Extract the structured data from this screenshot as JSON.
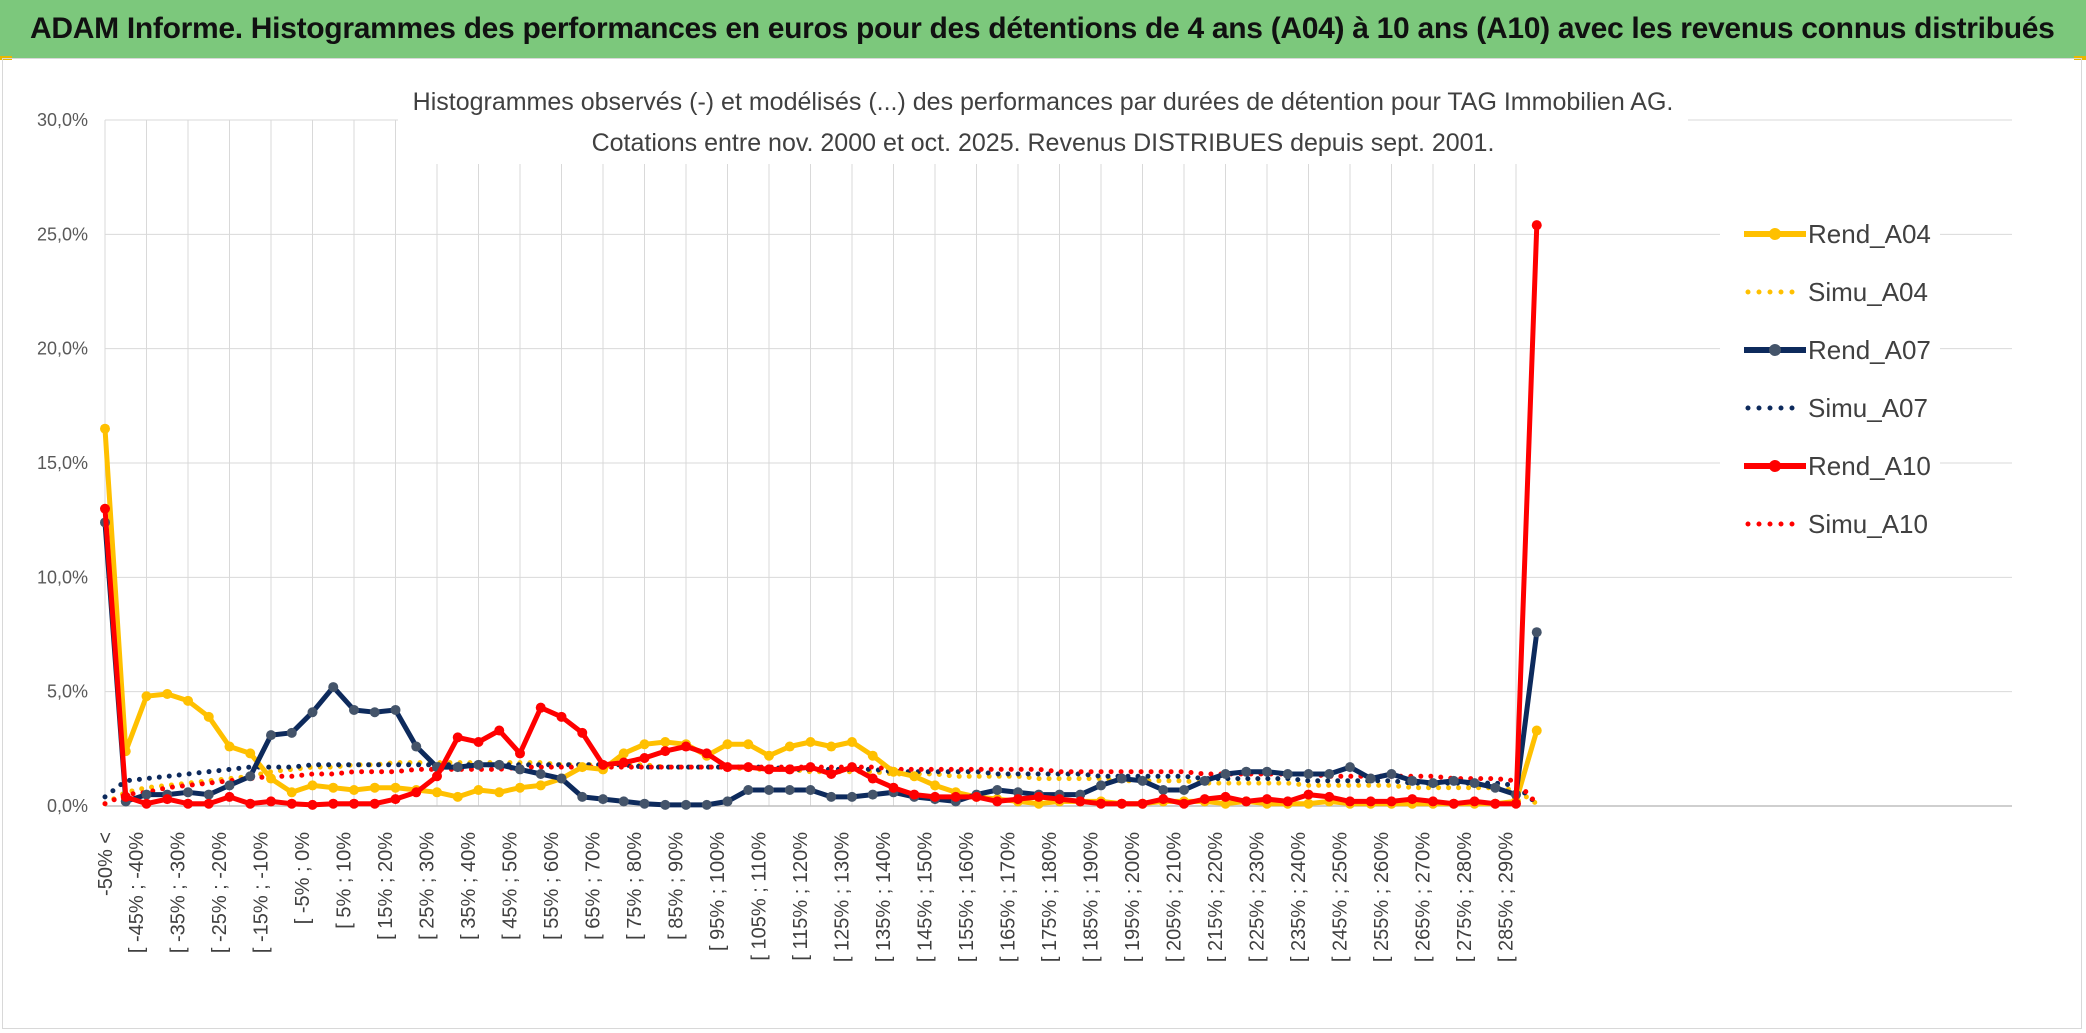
{
  "banner": {
    "title": "ADAM Informe. Histogrammes des performances en euros pour des détentions de 4 ans (A04) à 10 ans (A10) avec les revenus connus distribués"
  },
  "colors": {
    "banner_bg": "#7cc87c",
    "A04": "#ffc000",
    "A07": "#0d2a5c",
    "A10": "#ff0000",
    "grid": "#d9d9d9"
  },
  "chart_data": {
    "type": "line",
    "title_line1": "Histogrammes observés (-) et modélisés (...) des performances par durées de détention pour TAG Immobilien AG.",
    "title_line2": "Cotations entre nov. 2000 et oct. 2025. Revenus DISTRIBUES depuis sept. 2001.",
    "y_ticks": [
      "0,0%",
      "5,0%",
      "10,0%",
      "15,0%",
      "20,0%",
      "25,0%",
      "30,0%"
    ],
    "ylim": [
      0,
      30
    ],
    "grid": true,
    "legend_position": "right",
    "x_labels_shown": [
      "-50% <",
      "[ -45% ; -40%",
      "[ -35% ; -30%",
      "[ -25% ; -20%",
      "[ -15% ; -10%",
      "[ -5% ; 0%",
      "[ 5% ; 10%",
      "[ 15% ; 20%",
      "[ 25% ; 30%",
      "[ 35% ; 40%",
      "[ 45% ; 50%",
      "[ 55% ; 60%",
      "[ 65% ; 70%",
      "[ 75% ; 80%",
      "[ 85% ; 90%",
      "[ 95% ; 100%",
      "[ 105% ; 110%",
      "[ 115% ; 120%",
      "[ 125% ; 130%",
      "[ 135% ; 140%",
      "[ 145% ; 150%",
      "[ 155% ; 160%",
      "[ 165% ; 170%",
      "[ 175% ; 180%",
      "[ 185% ; 190%",
      "[ 195% ; 200%",
      "[ 205% ; 210%",
      "[ 215% ; 220%",
      "[ 225% ; 230%",
      "[ 235% ; 240%",
      "[ 245% ; 250%",
      "[ 255% ; 260%",
      "[ 265% ; 270%",
      "[ 275% ; 280%",
      "[ 285% ; 290%"
    ],
    "n_points": 70,
    "series": [
      {
        "name": "Rend_A04",
        "style": "solid",
        "color": "#ffc000",
        "values": [
          16.5,
          2.4,
          4.8,
          4.9,
          4.6,
          3.9,
          2.6,
          2.3,
          1.2,
          0.6,
          0.9,
          0.8,
          0.7,
          0.8,
          0.8,
          0.7,
          0.6,
          0.4,
          0.7,
          0.6,
          0.8,
          0.9,
          1.2,
          1.7,
          1.6,
          2.3,
          2.7,
          2.8,
          2.7,
          2.2,
          2.7,
          2.7,
          2.2,
          2.6,
          2.8,
          2.6,
          2.8,
          2.2,
          1.5,
          1.3,
          0.9,
          0.6,
          0.4,
          0.3,
          0.2,
          0.1,
          0.2,
          0.2,
          0.2,
          0.1,
          0.1,
          0.2,
          0.2,
          0.2,
          0.1,
          0.2,
          0.1,
          0.1,
          0.1,
          0.2,
          0.1,
          0.1,
          0.1,
          0.1,
          0.1,
          0.1,
          0.1,
          0.1,
          0.2,
          3.3
        ]
      },
      {
        "name": "Simu_A04",
        "style": "dotted",
        "color": "#ffc000",
        "values": [
          0.1,
          0.6,
          0.8,
          0.9,
          1.0,
          1.1,
          1.2,
          1.3,
          1.5,
          1.6,
          1.7,
          1.7,
          1.8,
          1.8,
          1.9,
          1.9,
          1.9,
          1.9,
          1.9,
          1.9,
          1.9,
          1.9,
          1.8,
          1.8,
          1.8,
          1.8,
          1.8,
          1.7,
          1.7,
          1.7,
          1.7,
          1.6,
          1.6,
          1.6,
          1.5,
          1.5,
          1.5,
          1.5,
          1.4,
          1.4,
          1.4,
          1.3,
          1.3,
          1.3,
          1.3,
          1.2,
          1.2,
          1.2,
          1.2,
          1.1,
          1.1,
          1.1,
          1.1,
          1.0,
          1.0,
          1.0,
          1.0,
          1.0,
          0.9,
          0.9,
          0.9,
          0.9,
          0.9,
          0.8,
          0.8,
          0.8,
          0.8,
          0.8,
          0.7,
          0.1
        ]
      },
      {
        "name": "Rend_A07",
        "style": "solid",
        "color": "#0d2a5c",
        "values": [
          12.4,
          0.2,
          0.5,
          0.5,
          0.6,
          0.5,
          0.9,
          1.3,
          3.1,
          3.2,
          4.1,
          5.2,
          4.2,
          4.1,
          4.2,
          2.6,
          1.7,
          1.7,
          1.8,
          1.8,
          1.6,
          1.4,
          1.2,
          0.4,
          0.3,
          0.2,
          0.1,
          0.05,
          0.05,
          0.05,
          0.2,
          0.7,
          0.7,
          0.7,
          0.7,
          0.4,
          0.4,
          0.5,
          0.6,
          0.4,
          0.3,
          0.2,
          0.5,
          0.7,
          0.6,
          0.5,
          0.5,
          0.5,
          0.9,
          1.2,
          1.1,
          0.7,
          0.7,
          1.1,
          1.4,
          1.5,
          1.5,
          1.4,
          1.4,
          1.4,
          1.7,
          1.2,
          1.4,
          1.1,
          1.0,
          1.1,
          1.0,
          0.8,
          0.5,
          7.6
        ]
      },
      {
        "name": "Simu_A07",
        "style": "dotted",
        "color": "#0d2a5c",
        "values": [
          0.4,
          1.1,
          1.2,
          1.3,
          1.4,
          1.5,
          1.6,
          1.7,
          1.7,
          1.7,
          1.8,
          1.8,
          1.8,
          1.8,
          1.8,
          1.8,
          1.8,
          1.8,
          1.8,
          1.8,
          1.8,
          1.8,
          1.8,
          1.8,
          1.8,
          1.8,
          1.7,
          1.7,
          1.7,
          1.7,
          1.7,
          1.7,
          1.7,
          1.6,
          1.6,
          1.6,
          1.6,
          1.6,
          1.5,
          1.5,
          1.5,
          1.5,
          1.5,
          1.4,
          1.4,
          1.4,
          1.4,
          1.4,
          1.3,
          1.3,
          1.3,
          1.3,
          1.3,
          1.2,
          1.2,
          1.2,
          1.2,
          1.2,
          1.1,
          1.1,
          1.1,
          1.1,
          1.1,
          1.0,
          1.0,
          1.0,
          1.0,
          1.0,
          0.9,
          0.1
        ]
      },
      {
        "name": "Rend_A10",
        "style": "solid",
        "color": "#ff0000",
        "values": [
          13.0,
          0.4,
          0.1,
          0.3,
          0.1,
          0.1,
          0.4,
          0.1,
          0.2,
          0.1,
          0.05,
          0.1,
          0.1,
          0.1,
          0.3,
          0.6,
          1.3,
          3.0,
          2.8,
          3.3,
          2.3,
          4.3,
          3.9,
          3.2,
          1.8,
          1.9,
          2.1,
          2.4,
          2.6,
          2.3,
          1.7,
          1.7,
          1.6,
          1.6,
          1.7,
          1.4,
          1.7,
          1.2,
          0.8,
          0.5,
          0.4,
          0.4,
          0.4,
          0.2,
          0.3,
          0.4,
          0.3,
          0.2,
          0.1,
          0.1,
          0.1,
          0.3,
          0.1,
          0.3,
          0.4,
          0.2,
          0.3,
          0.2,
          0.5,
          0.4,
          0.2,
          0.2,
          0.2,
          0.3,
          0.2,
          0.1,
          0.2,
          0.1,
          0.1,
          25.4
        ]
      },
      {
        "name": "Simu_A10",
        "style": "dotted",
        "color": "#ff0000",
        "values": [
          0.1,
          0.5,
          0.6,
          0.8,
          0.9,
          1.0,
          1.1,
          1.2,
          1.3,
          1.3,
          1.4,
          1.4,
          1.5,
          1.5,
          1.5,
          1.6,
          1.6,
          1.6,
          1.6,
          1.6,
          1.7,
          1.7,
          1.7,
          1.7,
          1.7,
          1.7,
          1.7,
          1.7,
          1.7,
          1.7,
          1.7,
          1.7,
          1.7,
          1.7,
          1.7,
          1.7,
          1.7,
          1.7,
          1.6,
          1.6,
          1.6,
          1.6,
          1.6,
          1.6,
          1.6,
          1.6,
          1.5,
          1.5,
          1.5,
          1.5,
          1.5,
          1.5,
          1.5,
          1.4,
          1.4,
          1.4,
          1.4,
          1.4,
          1.4,
          1.3,
          1.3,
          1.3,
          1.3,
          1.3,
          1.3,
          1.2,
          1.2,
          1.2,
          1.1,
          0.1
        ]
      }
    ]
  }
}
